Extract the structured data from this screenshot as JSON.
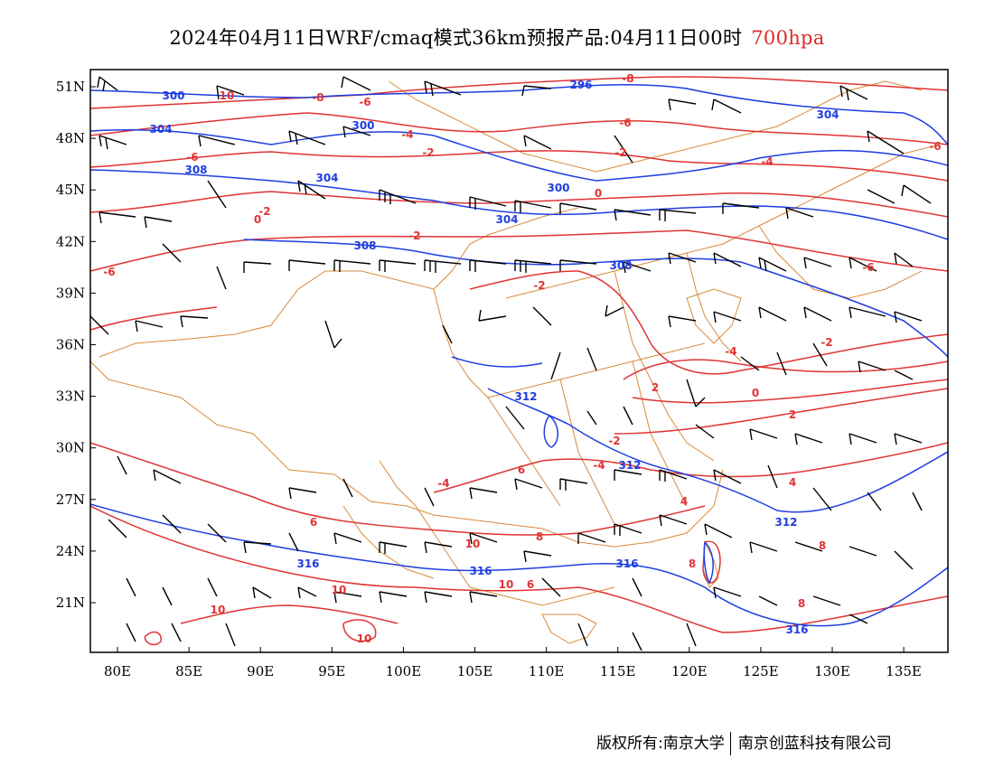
{
  "title": {
    "main": "2024年04月11日WRF/cmaq模式36km预报产品:04月11日00时",
    "level": "700hpa",
    "level_color": "#e02828"
  },
  "axes": {
    "lon_labels": [
      "80E",
      "85E",
      "90E",
      "95E",
      "100E",
      "105E",
      "110E",
      "115E",
      "120E",
      "125E",
      "130E",
      "135E"
    ],
    "lat_labels": [
      "51N",
      "48N",
      "45N",
      "42N",
      "39N",
      "36N",
      "33N",
      "30N",
      "27N",
      "24N",
      "21N"
    ]
  },
  "colors": {
    "height_contours": "#1f3ee0",
    "temperature_contours": "#e03434",
    "boundaries": "#d98a3a",
    "wind_barbs": "#000000"
  },
  "height_labels": [
    "300",
    "296",
    "304",
    "300",
    "308",
    "304",
    "300",
    "304",
    "304",
    "308",
    "308",
    "312",
    "312",
    "312",
    "316",
    "316",
    "316",
    "316"
  ],
  "temperature_labels": [
    "10",
    "-8",
    "-6",
    "-8",
    "-6",
    "-4",
    "-2",
    "-2",
    "-4",
    "-6",
    "-6",
    "0",
    "-2",
    "-2",
    "0",
    "-6",
    "-2",
    "-6",
    "-2",
    "-4",
    "2",
    "-4",
    "0",
    "-2",
    "4",
    "2",
    "-4",
    "6",
    "4",
    "6",
    "8",
    "8",
    "8",
    "10",
    "10",
    "10",
    "10",
    "8",
    "6",
    "10"
  ],
  "footer": {
    "copyright": "版权所有:南京大学",
    "company": "南京创蓝科技有限公司"
  }
}
